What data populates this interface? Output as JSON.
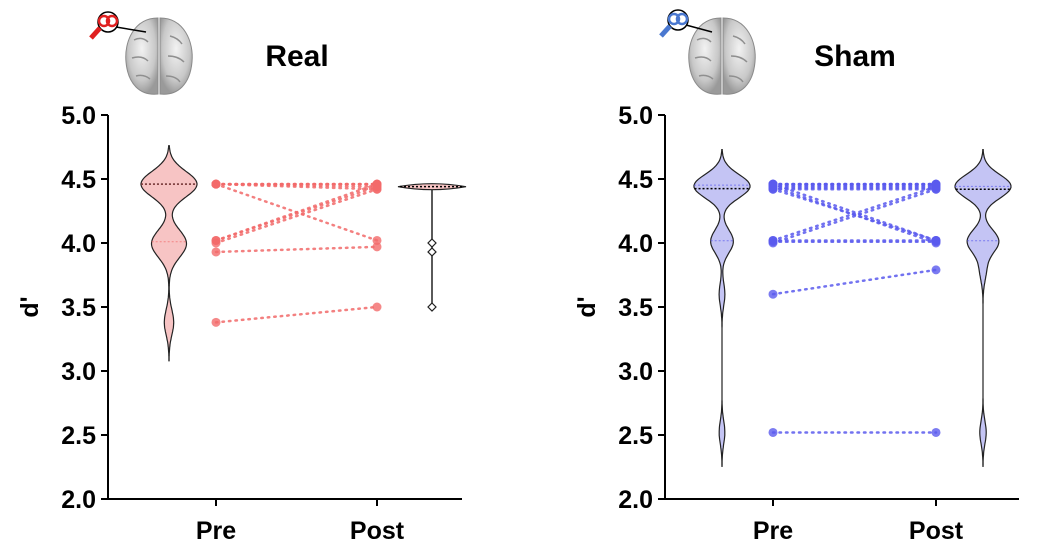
{
  "chart_data": [
    {
      "type": "violin-paired",
      "title": "Real",
      "ylabel": "d'",
      "categories": [
        "Pre",
        "Post"
      ],
      "ylim": [
        2.0,
        5.0
      ],
      "yticks": [
        "2.0",
        "2.5",
        "3.0",
        "3.5",
        "4.0",
        "4.5",
        "5.0"
      ],
      "color": "#f26a6a",
      "violin_fill": "#f7c4c4",
      "pairs": [
        [
          4.46,
          4.46
        ],
        [
          4.46,
          4.46
        ],
        [
          4.46,
          4.46
        ],
        [
          4.46,
          4.44
        ],
        [
          4.46,
          4.02
        ],
        [
          4.46,
          4.42
        ],
        [
          4.02,
          4.46
        ],
        [
          4.02,
          4.44
        ],
        [
          4.0,
          4.42
        ],
        [
          3.93,
          3.97
        ],
        [
          3.38,
          3.5
        ]
      ]
    },
    {
      "type": "violin-paired",
      "title": "Sham",
      "ylabel": "d'",
      "categories": [
        "Pre",
        "Post"
      ],
      "ylim": [
        2.0,
        5.0
      ],
      "yticks": [
        "2.0",
        "2.5",
        "3.0",
        "3.5",
        "4.0",
        "4.5",
        "5.0"
      ],
      "color": "#5a5aee",
      "violin_fill": "#c4c4f4",
      "pairs": [
        [
          4.46,
          4.46
        ],
        [
          4.46,
          4.46
        ],
        [
          4.46,
          4.46
        ],
        [
          4.45,
          4.45
        ],
        [
          4.44,
          4.44
        ],
        [
          4.43,
          4.43
        ],
        [
          4.42,
          4.42
        ],
        [
          4.46,
          4.02
        ],
        [
          4.44,
          4.0
        ],
        [
          4.42,
          4.02
        ],
        [
          4.02,
          4.44
        ],
        [
          4.0,
          4.42
        ],
        [
          4.02,
          4.02
        ],
        [
          4.01,
          4.01
        ],
        [
          3.6,
          3.79
        ],
        [
          2.52,
          2.52
        ]
      ]
    }
  ]
}
